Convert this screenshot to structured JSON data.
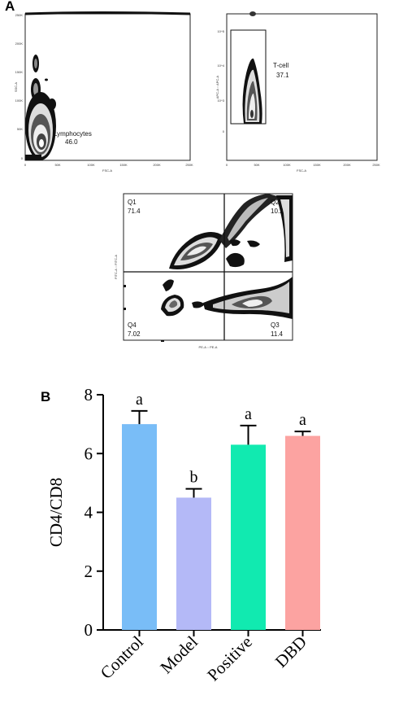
{
  "panel_labels": {
    "a": "A",
    "b": "B"
  },
  "flow": {
    "plot1": {
      "xlabel": "FSC-A",
      "ylabel": "SSC-A",
      "y_ticks": [
        "250K",
        "200K",
        "150K",
        "100K",
        "50K",
        "0"
      ],
      "x_ticks": [
        "0",
        "50K",
        "100K",
        "150K",
        "200K",
        "250K"
      ],
      "gate_name": "Lymphocytes",
      "gate_value": "46.0"
    },
    "plot2": {
      "xlabel": "FSC-A",
      "ylabel": "APC-A :: APC-A",
      "y_ticks": [
        "10^5",
        "10^4",
        "10^3",
        "0"
      ],
      "x_ticks": [
        "0",
        "50K",
        "100K",
        "150K",
        "200K",
        "250K"
      ],
      "gate_name": "T-cell",
      "gate_value": "37.1"
    },
    "plot3": {
      "xlabel": "PE-A :: PE-A",
      "ylabel": "FITC-A :: FITC-A",
      "quadrants": [
        {
          "name": "Q1",
          "value": "71.4"
        },
        {
          "name": "Q2",
          "value": "10.2"
        },
        {
          "name": "Q3",
          "value": "11.4"
        },
        {
          "name": "Q4",
          "value": "7.02"
        }
      ]
    }
  },
  "colors": {
    "Control": "#79bdf7",
    "Model": "#b4b9f7",
    "Positive": "#11eab0",
    "DBD": "#fca3a1"
  },
  "chart_data": {
    "type": "bar",
    "categories": [
      "Control",
      "Model",
      "Positive",
      "DBD"
    ],
    "values": [
      7.0,
      4.5,
      6.3,
      6.6
    ],
    "errors": [
      0.45,
      0.3,
      0.65,
      0.15
    ],
    "letters": [
      "a",
      "b",
      "a",
      "a"
    ],
    "ylabel": "CD4/CD8",
    "ylim": [
      0,
      8
    ],
    "yticks": [
      0,
      2,
      4,
      6,
      8
    ]
  }
}
